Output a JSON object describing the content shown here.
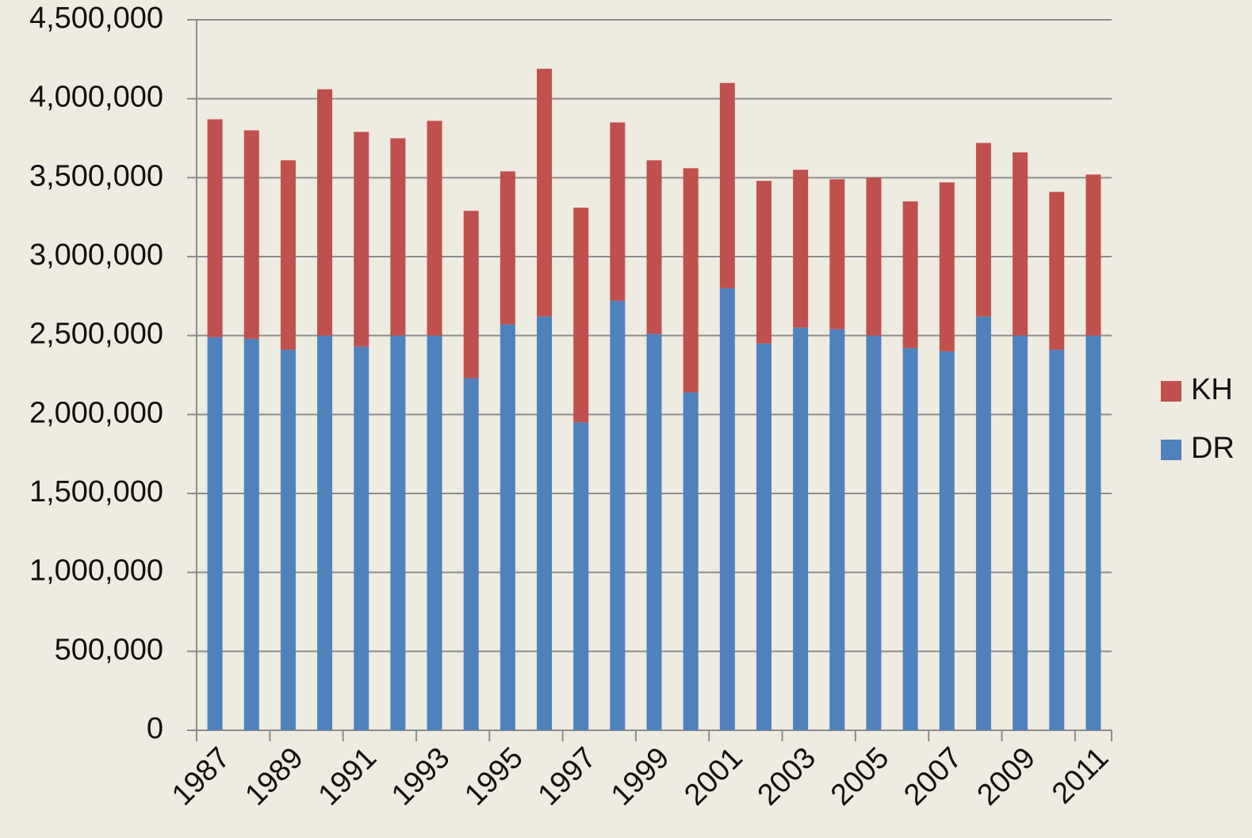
{
  "chart_data": {
    "type": "stacked_bar",
    "categories": [
      "1987",
      null,
      "1989",
      null,
      "1991",
      null,
      "1993",
      null,
      "1995",
      null,
      "1997",
      null,
      "1999",
      null,
      "2001",
      null,
      "2003",
      null,
      "2005",
      null,
      "2007",
      null,
      "2009",
      null,
      "2011"
    ],
    "series": [
      {
        "name": "DR",
        "color": "#4f81bd",
        "values": [
          2490000,
          2480000,
          2410000,
          2500000,
          2430000,
          2500000,
          2500000,
          2230000,
          2570000,
          2620000,
          1950000,
          2720000,
          2510000,
          2140000,
          2800000,
          2450000,
          2550000,
          2540000,
          2500000,
          2420000,
          2400000,
          2620000,
          2500000,
          2410000,
          2500000
        ]
      },
      {
        "name": "KH",
        "color": "#c0504d",
        "values": [
          1380000,
          1320000,
          1200000,
          1560000,
          1360000,
          1250000,
          1360000,
          1060000,
          970000,
          1570000,
          1360000,
          1130000,
          1100000,
          1420000,
          1300000,
          1030000,
          1000000,
          950000,
          1000000,
          930000,
          1070000,
          1100000,
          1160000,
          1000000,
          1020000
        ]
      }
    ],
    "ylim": [
      0,
      4500000
    ],
    "yticks": [
      0,
      {
        "value": 500000,
        "label": "500,000"
      },
      {
        "value": 1000000,
        "label": "1,000,000"
      },
      {
        "value": 1500000,
        "label": "1,500,000"
      },
      {
        "value": 2000000,
        "label": "2,000,000"
      },
      {
        "value": 2500000,
        "label": "2,500,000"
      },
      {
        "value": 3000000,
        "label": "3,000,000"
      },
      {
        "value": 3500000,
        "label": "3,500,000"
      },
      {
        "value": 4000000,
        "label": "4,000,000"
      },
      {
        "value": 4500000,
        "label": "4,500,000"
      }
    ],
    "grid": true,
    "legend": "right"
  }
}
